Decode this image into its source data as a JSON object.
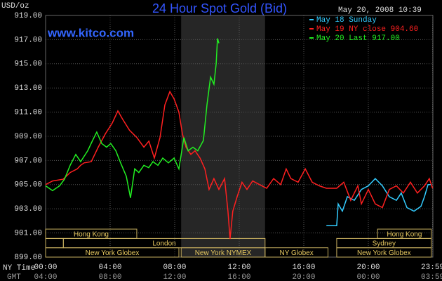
{
  "chart_data": {
    "type": "line",
    "title": "24 Hour Spot Gold (Bid)",
    "timestamp": "May 20, 2008 10:39",
    "y_unit": "USD/oz",
    "watermark": "www.kitco.com",
    "x_label": "NY Time",
    "gmt_label": "GMT",
    "xlim": [
      0,
      24
    ],
    "ylim": [
      899,
      919
    ],
    "xticks": [
      {
        "value": 0,
        "label": "00:00"
      },
      {
        "value": 4,
        "label": "04:00"
      },
      {
        "value": 8,
        "label": "08:00"
      },
      {
        "value": 12,
        "label": "12:00"
      },
      {
        "value": 16,
        "label": "16:00"
      },
      {
        "value": 20,
        "label": "20:00"
      },
      {
        "value": 23.98,
        "label": "23:59"
      }
    ],
    "gmt_labels": [
      "04:00",
      "08:00",
      "12:00",
      "16:00",
      "20:00",
      "00:00",
      "03:59"
    ],
    "yticks": [
      {
        "value": 899,
        "label": "899.00"
      },
      {
        "value": 901,
        "label": "901.00"
      },
      {
        "value": 903,
        "label": "903.00"
      },
      {
        "value": 905,
        "label": "905.00"
      },
      {
        "value": 907,
        "label": "907.00"
      },
      {
        "value": 909,
        "label": "909.00"
      },
      {
        "value": 911,
        "label": "911.00"
      },
      {
        "value": 913,
        "label": "913.00"
      },
      {
        "value": 915,
        "label": "915.00"
      },
      {
        "value": 917,
        "label": "917.00"
      },
      {
        "value": 919,
        "label": "919.00"
      }
    ],
    "grid": true,
    "session_rows": [
      [
        {
          "label": "Hong Kong",
          "start": 0,
          "end": 5.65
        },
        {
          "label": "Hong Kong",
          "start": 20.57,
          "end": 23.9
        }
      ],
      [
        {
          "label": null,
          "start": 0,
          "end": 1.1
        },
        {
          "label": "London",
          "start": 1.1,
          "end": 13.6
        },
        {
          "label": "Sydney",
          "start": 18.04,
          "end": 23.9
        }
      ],
      [
        {
          "label": "New York Globex",
          "start": 0,
          "end": 8.26
        },
        {
          "label": "New York NYMEX",
          "start": 8.4,
          "end": 13.6,
          "highlight": true
        },
        {
          "label": "NY Globex",
          "start": 13.6,
          "end": 17.5
        },
        {
          "label": "New York Globex",
          "start": 18.04,
          "end": 23.9
        }
      ]
    ],
    "series": [
      {
        "name": "May 18 Sunday",
        "color": "#33ccff",
        "x": [
          17.4,
          18.04,
          18.13,
          18.39,
          18.7,
          19.13,
          19.57,
          20.0,
          20.43,
          20.87,
          21.3,
          21.74,
          22.04,
          22.39,
          22.83,
          23.26,
          23.48,
          23.7,
          23.91
        ],
        "values": [
          901.6,
          901.6,
          903.4,
          902.8,
          904.0,
          903.7,
          904.6,
          904.9,
          905.5,
          904.9,
          904.0,
          903.7,
          904.3,
          903.1,
          902.8,
          903.2,
          904.0,
          905.0,
          905.0
        ]
      },
      {
        "name": "May 19 NY close 904.60",
        "color": "#ff2020",
        "x": [
          0,
          0.43,
          1.09,
          1.52,
          1.96,
          2.17,
          2.39,
          2.83,
          3.26,
          3.7,
          4.13,
          4.48,
          4.78,
          5.2,
          5.65,
          6.09,
          6.4,
          6.74,
          7.09,
          7.39,
          7.7,
          7.96,
          8.26,
          8.48,
          8.7,
          9.0,
          9.26,
          9.57,
          9.87,
          10.13,
          10.43,
          10.74,
          11.09,
          11.3,
          11.43,
          11.6,
          11.87,
          12.17,
          12.48,
          12.83,
          13.26,
          13.7,
          14.13,
          14.57,
          14.91,
          15.2,
          15.65,
          16.09,
          16.52,
          16.96,
          17.4,
          18.04,
          18.48,
          18.91,
          19.35,
          19.57,
          20.0,
          20.43,
          20.87,
          21.3,
          21.74,
          22.17,
          22.61,
          23.04,
          23.48,
          23.78,
          23.98
        ],
        "values": [
          905.0,
          905.3,
          905.45,
          906.0,
          906.3,
          906.6,
          906.8,
          906.9,
          908.1,
          909.2,
          910.1,
          911.1,
          910.4,
          909.5,
          908.9,
          908.1,
          908.6,
          907.2,
          908.9,
          911.6,
          912.7,
          912.1,
          911.0,
          909.2,
          908.1,
          907.5,
          907.8,
          907.2,
          906.3,
          904.6,
          905.5,
          904.6,
          905.5,
          902.8,
          900.5,
          902.8,
          904.0,
          905.2,
          904.6,
          905.3,
          905.0,
          904.7,
          905.5,
          905.0,
          906.3,
          905.5,
          905.2,
          906.3,
          905.2,
          904.9,
          904.7,
          904.7,
          905.2,
          903.7,
          904.9,
          903.4,
          904.6,
          903.4,
          903.1,
          904.6,
          904.9,
          904.3,
          905.2,
          904.3,
          904.9,
          905.5,
          904.7
        ]
      },
      {
        "name": "May 20 Last 917.00",
        "color": "#22ee22",
        "x": [
          0,
          0.43,
          0.87,
          1.17,
          1.52,
          1.87,
          2.17,
          2.61,
          2.91,
          3.17,
          3.48,
          3.78,
          4.04,
          4.35,
          4.65,
          5.0,
          5.26,
          5.52,
          5.78,
          6.09,
          6.39,
          6.65,
          6.96,
          7.26,
          7.61,
          7.96,
          8.26,
          8.57,
          8.83,
          9.13,
          9.43,
          9.78,
          10.0,
          10.22,
          10.43,
          10.57,
          10.65,
          10.74
        ],
        "values": [
          904.9,
          904.5,
          904.9,
          905.45,
          906.6,
          907.5,
          906.9,
          907.8,
          908.65,
          909.35,
          908.4,
          908.1,
          908.4,
          907.8,
          906.8,
          905.7,
          903.9,
          906.3,
          906.0,
          906.6,
          906.4,
          906.9,
          906.6,
          907.2,
          906.8,
          907.2,
          906.3,
          908.9,
          907.8,
          908.1,
          907.8,
          908.65,
          911.6,
          913.9,
          913.3,
          915.0,
          917.1,
          916.7
        ]
      }
    ]
  }
}
